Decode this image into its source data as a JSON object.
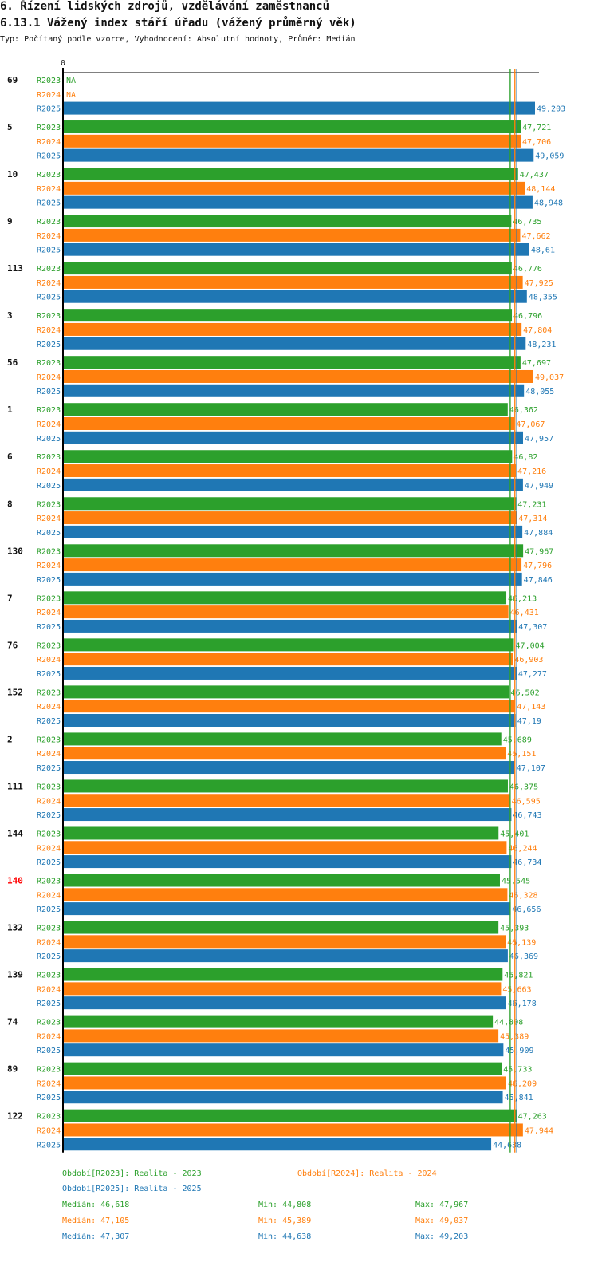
{
  "header": {
    "title": "6. Řízení lidských zdrojů, vzdělávání zaměstnanců",
    "subtitle": "6.13.1 Vážený index stáří úřadu (vážený průměrný věk)",
    "description": "Typ: Počítaný podle vzorce, Vyhodnocení: Absolutní hodnoty, Průměr: Medián"
  },
  "colors": {
    "R2023": "#2ca02c",
    "R2024": "#ff7f0e",
    "R2025": "#1f77b4",
    "highlight": "#ff0000",
    "text": "#111111"
  },
  "chart_data": {
    "type": "bar",
    "orientation": "horizontal",
    "title": "6.13.1 Vážený index stáří úřadu (vážený průměrný věk)",
    "axis_zero_label": "0",
    "xlim": [
      0,
      49.203
    ],
    "highlighted_category": "140",
    "categories": [
      "69",
      "5",
      "10",
      "9",
      "113",
      "3",
      "56",
      "1",
      "6",
      "8",
      "130",
      "7",
      "76",
      "152",
      "2",
      "111",
      "144",
      "140",
      "132",
      "139",
      "74",
      "89",
      "122"
    ],
    "series": [
      {
        "name": "R2023",
        "values": [
          null,
          47.721,
          47.437,
          46.735,
          46.776,
          46.796,
          47.697,
          46.362,
          46.82,
          47.231,
          47.967,
          46.213,
          47.004,
          46.502,
          45.689,
          46.375,
          45.401,
          45.545,
          45.393,
          45.821,
          44.808,
          45.733,
          47.263
        ]
      },
      {
        "name": "R2024",
        "values": [
          null,
          47.706,
          48.144,
          47.662,
          47.925,
          47.804,
          49.037,
          47.067,
          47.216,
          47.314,
          47.796,
          46.431,
          46.903,
          47.143,
          46.151,
          46.595,
          46.244,
          46.328,
          46.139,
          45.663,
          45.389,
          46.209,
          47.944
        ]
      },
      {
        "name": "R2025",
        "values": [
          49.203,
          49.059,
          48.948,
          48.61,
          48.355,
          48.231,
          48.055,
          47.957,
          47.949,
          47.884,
          47.846,
          47.307,
          47.277,
          47.19,
          47.107,
          46.743,
          46.734,
          46.656,
          46.369,
          46.178,
          45.909,
          45.841,
          44.638
        ]
      }
    ],
    "value_labels": [
      [
        "NA",
        "NA",
        "49,203"
      ],
      [
        "47,721",
        "47,706",
        "49,059"
      ],
      [
        "47,437",
        "48,144",
        "48,948"
      ],
      [
        "46,735",
        "47,662",
        "48,61"
      ],
      [
        "46,776",
        "47,925",
        "48,355"
      ],
      [
        "46,796",
        "47,804",
        "48,231"
      ],
      [
        "47,697",
        "49,037",
        "48,055"
      ],
      [
        "46,362",
        "47,067",
        "47,957"
      ],
      [
        "46,82",
        "47,216",
        "47,949"
      ],
      [
        "47,231",
        "47,314",
        "47,884"
      ],
      [
        "47,967",
        "47,796",
        "47,846"
      ],
      [
        "46,213",
        "46,431",
        "47,307"
      ],
      [
        "47,004",
        "46,903",
        "47,277"
      ],
      [
        "46,502",
        "47,143",
        "47,19"
      ],
      [
        "45,689",
        "46,151",
        "47,107"
      ],
      [
        "46,375",
        "46,595",
        "46,743"
      ],
      [
        "45,401",
        "46,244",
        "46,734"
      ],
      [
        "45,545",
        "46,328",
        "46,656"
      ],
      [
        "45,393",
        "46,139",
        "46,369"
      ],
      [
        "45,821",
        "45,663",
        "46,178"
      ],
      [
        "44,808",
        "45,389",
        "45,909"
      ],
      [
        "45,733",
        "46,209",
        "45,841"
      ],
      [
        "47,263",
        "47,944",
        "44,638"
      ]
    ],
    "median_lines": [
      {
        "series": "R2023",
        "value": 46.618
      },
      {
        "series": "R2024",
        "value": 47.105
      },
      {
        "series": "R2025",
        "value": 47.307
      }
    ]
  },
  "legend": {
    "entries": [
      {
        "series": "R2023",
        "text": "Období[R2023]: Realita - 2023"
      },
      {
        "series": "R2024",
        "text": "Období[R2024]: Realita - 2024"
      },
      {
        "series": "R2025",
        "text": "Období[R2025]: Realita - 2025"
      }
    ],
    "stats": [
      {
        "series": "R2023",
        "median": "Medián: 46,618",
        "min": "Min: 44,808",
        "max": "Max: 47,967"
      },
      {
        "series": "R2024",
        "median": "Medián: 47,105",
        "min": "Min: 45,389",
        "max": "Max: 49,037"
      },
      {
        "series": "R2025",
        "median": "Medián: 47,307",
        "min": "Min: 44,638",
        "max": "Max: 49,203"
      }
    ]
  }
}
